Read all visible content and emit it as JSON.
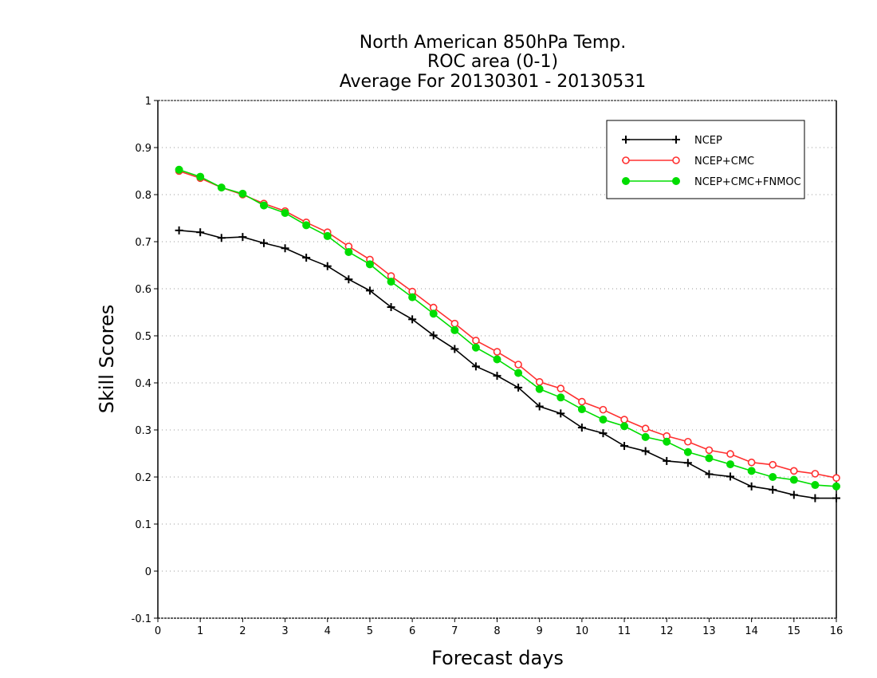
{
  "chart_data": {
    "type": "line",
    "title_lines": [
      "North American 850hPa Temp.",
      "ROC area (0-1)",
      "Average For 20130301 - 20130531"
    ],
    "xlabel": "Forecast days",
    "ylabel": "Skill Scores",
    "xlim": [
      0,
      16
    ],
    "ylim": [
      -0.1,
      1
    ],
    "xticks": [
      0,
      1,
      2,
      3,
      4,
      5,
      6,
      7,
      8,
      9,
      10,
      11,
      12,
      13,
      14,
      15,
      16
    ],
    "yticks": [
      -0.1,
      0,
      0.1,
      0.2,
      0.3,
      0.4,
      0.5,
      0.6,
      0.7,
      0.8,
      0.9,
      1
    ],
    "ytick_labels": [
      "-0.1",
      "0",
      "0.1",
      "0.2",
      "0.3",
      "0.4",
      "0.5",
      "0.6",
      "0.7",
      "0.8",
      "0.9",
      "1"
    ],
    "grid": "horizontal dotted",
    "legend_position": "top-right",
    "x": [
      0.5,
      1,
      1.5,
      2,
      2.5,
      3,
      3.5,
      4,
      4.5,
      5,
      5.5,
      6,
      6.5,
      7,
      7.5,
      8,
      8.5,
      9,
      9.5,
      10,
      10.5,
      11,
      11.5,
      12,
      12.5,
      13,
      13.5,
      14,
      14.5,
      15,
      15.5,
      16
    ],
    "series": [
      {
        "name": "NCEP",
        "color": "#000000",
        "marker": "plus",
        "values": [
          0.724,
          0.72,
          0.708,
          0.71,
          0.697,
          0.686,
          0.666,
          0.648,
          0.62,
          0.596,
          0.561,
          0.535,
          0.501,
          0.472,
          0.435,
          0.415,
          0.39,
          0.35,
          0.335,
          0.305,
          0.293,
          0.266,
          0.255,
          0.234,
          0.23,
          0.206,
          0.201,
          0.18,
          0.173,
          0.162,
          0.155,
          0.155
        ]
      },
      {
        "name": "NCEP+CMC",
        "color": "#ff3030",
        "marker": "open-circle",
        "values": [
          0.85,
          0.835,
          0.815,
          0.8,
          0.781,
          0.765,
          0.741,
          0.72,
          0.69,
          0.662,
          0.627,
          0.594,
          0.56,
          0.526,
          0.49,
          0.466,
          0.439,
          0.402,
          0.388,
          0.36,
          0.343,
          0.322,
          0.303,
          0.287,
          0.275,
          0.257,
          0.249,
          0.231,
          0.226,
          0.213,
          0.207,
          0.198
        ]
      },
      {
        "name": "NCEP+CMC+FNMOC",
        "color": "#00dd00",
        "marker": "filled-circle",
        "values": [
          0.853,
          0.838,
          0.815,
          0.802,
          0.777,
          0.761,
          0.735,
          0.712,
          0.678,
          0.652,
          0.615,
          0.582,
          0.547,
          0.512,
          0.475,
          0.45,
          0.421,
          0.387,
          0.369,
          0.344,
          0.322,
          0.308,
          0.285,
          0.275,
          0.253,
          0.24,
          0.227,
          0.213,
          0.2,
          0.194,
          0.183,
          0.18
        ]
      }
    ]
  }
}
